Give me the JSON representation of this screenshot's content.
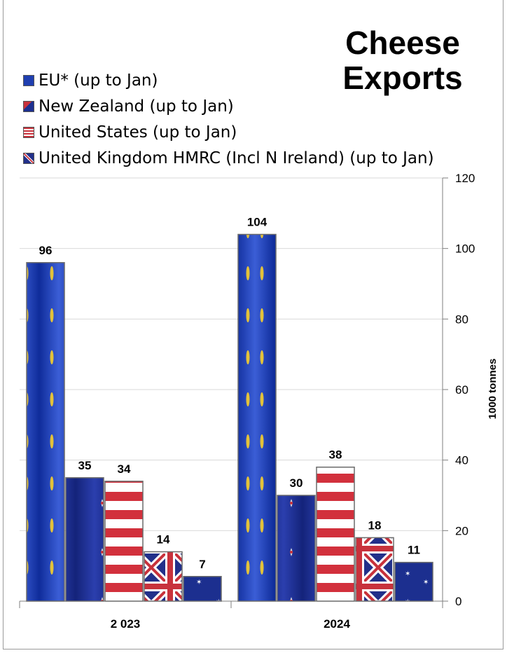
{
  "chart_data": {
    "type": "bar",
    "title": "Cheese Exports",
    "title_lines": [
      "Cheese",
      "Exports"
    ],
    "categories": [
      "2 023",
      "2024"
    ],
    "series": [
      {
        "name": "EU* (up to Jan)",
        "values": [
          96,
          104
        ],
        "color": "#1f3fb0",
        "icon": "eu-flag-icon"
      },
      {
        "name": "New Zealand (up to Jan)",
        "values": [
          35,
          30
        ],
        "color": "#1c2f8f",
        "icon": "new-zealand-flag-icon"
      },
      {
        "name": "United States (up to Jan)",
        "values": [
          34,
          38
        ],
        "color": "#c8323c",
        "icon": "us-flag-icon"
      },
      {
        "name": "United Kingdom HMRC (Incl N Ireland) (up to Jan)",
        "values": [
          14,
          18
        ],
        "color": "#22308a",
        "icon": "uk-flag-icon"
      }
    ],
    "extra_bars": [
      {
        "category": "2 023",
        "value": 7,
        "color": "#1c2f8f",
        "icon": "australia-flag-icon"
      },
      {
        "category": "2024",
        "value": 11,
        "color": "#1c2f8f",
        "icon": "australia-flag-icon"
      }
    ],
    "ylabel": "1000 tonnes",
    "ylim": [
      0,
      120
    ],
    "yticks": [
      0,
      20,
      40,
      60,
      80,
      100,
      120
    ],
    "y_axis_side": "right",
    "grid": true,
    "legend_position": "top-left"
  }
}
